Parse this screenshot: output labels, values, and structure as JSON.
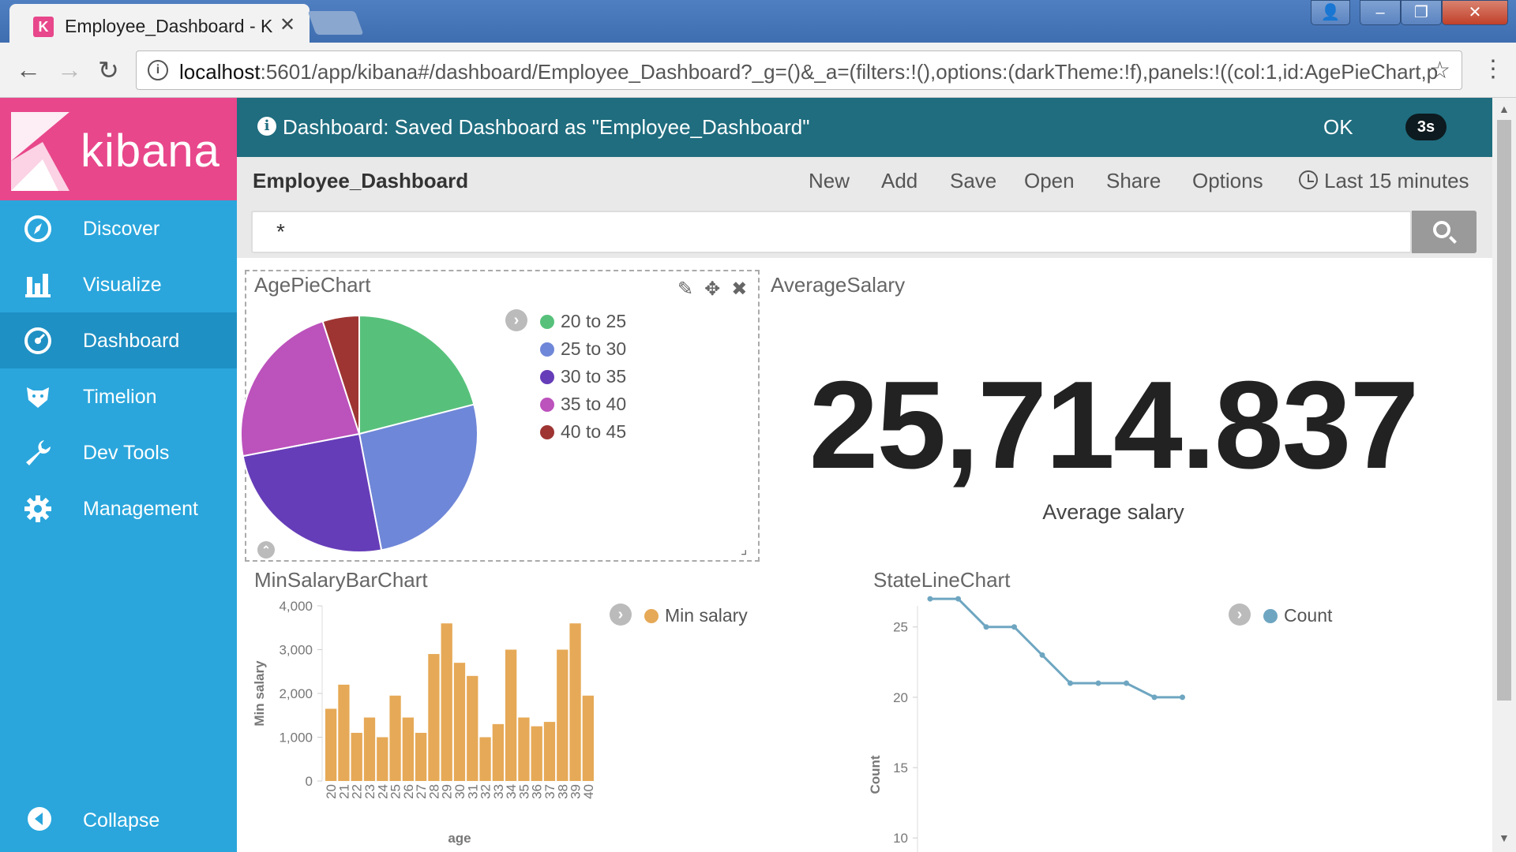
{
  "browser": {
    "tab_title": "Employee_Dashboard - K",
    "tab_close": "✕",
    "url_host": "localhost",
    "url_rest": ":5601/app/kibana#/dashboard/Employee_Dashboard?_g=()&_a=(filters:!(),options:(darkTheme:!f),panels:!((col:1,id:AgePieChart,p"
  },
  "sidebar": {
    "brand": "kibana",
    "items": [
      {
        "label": "Discover"
      },
      {
        "label": "Visualize"
      },
      {
        "label": "Dashboard"
      },
      {
        "label": "Timelion"
      },
      {
        "label": "Dev Tools"
      },
      {
        "label": "Management"
      }
    ],
    "collapse_label": "Collapse"
  },
  "toast": {
    "message": "Dashboard: Saved Dashboard as \"Employee_Dashboard\"",
    "ok": "OK",
    "countdown": "3s"
  },
  "topnav": {
    "title": "Employee_Dashboard",
    "new": "New",
    "add": "Add",
    "save": "Save",
    "open": "Open",
    "share": "Share",
    "options": "Options",
    "time": "Last 15 minutes"
  },
  "query": {
    "value": "*"
  },
  "panels": {
    "pie_title": "AgePieChart",
    "avg_title": "AverageSalary",
    "bar_title": "MinSalaryBarChart",
    "line_title": "StateLineChart",
    "metric_value": "25,714.837",
    "metric_label": "Average salary",
    "bar_legend": "Min salary",
    "line_legend": "Count"
  },
  "colors": {
    "brand_pink": "#e8478b",
    "sidebar_blue": "#2aa6dc",
    "toast_teal": "#1f6d7f",
    "bar": "#e6a957",
    "line": "#6ea6c1"
  },
  "chart_data": [
    {
      "type": "pie",
      "title": "AgePieChart",
      "categories": [
        "20 to 25",
        "25 to 30",
        "30 to 35",
        "35 to 40",
        "40 to 45"
      ],
      "values": [
        21,
        26,
        25,
        23,
        5
      ],
      "colors": [
        "#57c17b",
        "#6f87d8",
        "#663db8",
        "#bc52bc",
        "#9e3533"
      ]
    },
    {
      "type": "bar",
      "title": "MinSalaryBarChart",
      "xlabel": "age",
      "ylabel": "Min salary",
      "categories": [
        "20",
        "21",
        "22",
        "23",
        "24",
        "25",
        "26",
        "27",
        "28",
        "29",
        "30",
        "31",
        "32",
        "33",
        "34",
        "35",
        "36",
        "37",
        "38",
        "39",
        "40"
      ],
      "values": [
        1650,
        2200,
        1100,
        1450,
        1000,
        1950,
        1450,
        1100,
        2900,
        3600,
        2700,
        2400,
        1000,
        1300,
        3000,
        1450,
        1250,
        1350,
        3000,
        3600,
        1950
      ],
      "ylim": [
        0,
        4000
      ],
      "yticks": [
        "4,000",
        "3,000",
        "2,000",
        "1,000",
        "0"
      ],
      "series": [
        {
          "name": "Min salary"
        }
      ]
    },
    {
      "type": "line",
      "title": "StateLineChart",
      "ylabel": "Count",
      "y": [
        27,
        27,
        25,
        25,
        23,
        21,
        21,
        21,
        20,
        20
      ],
      "ylim": [
        9,
        26.5
      ],
      "yticks": [
        "25",
        "20",
        "15",
        "10"
      ],
      "series": [
        {
          "name": "Count"
        }
      ]
    }
  ]
}
